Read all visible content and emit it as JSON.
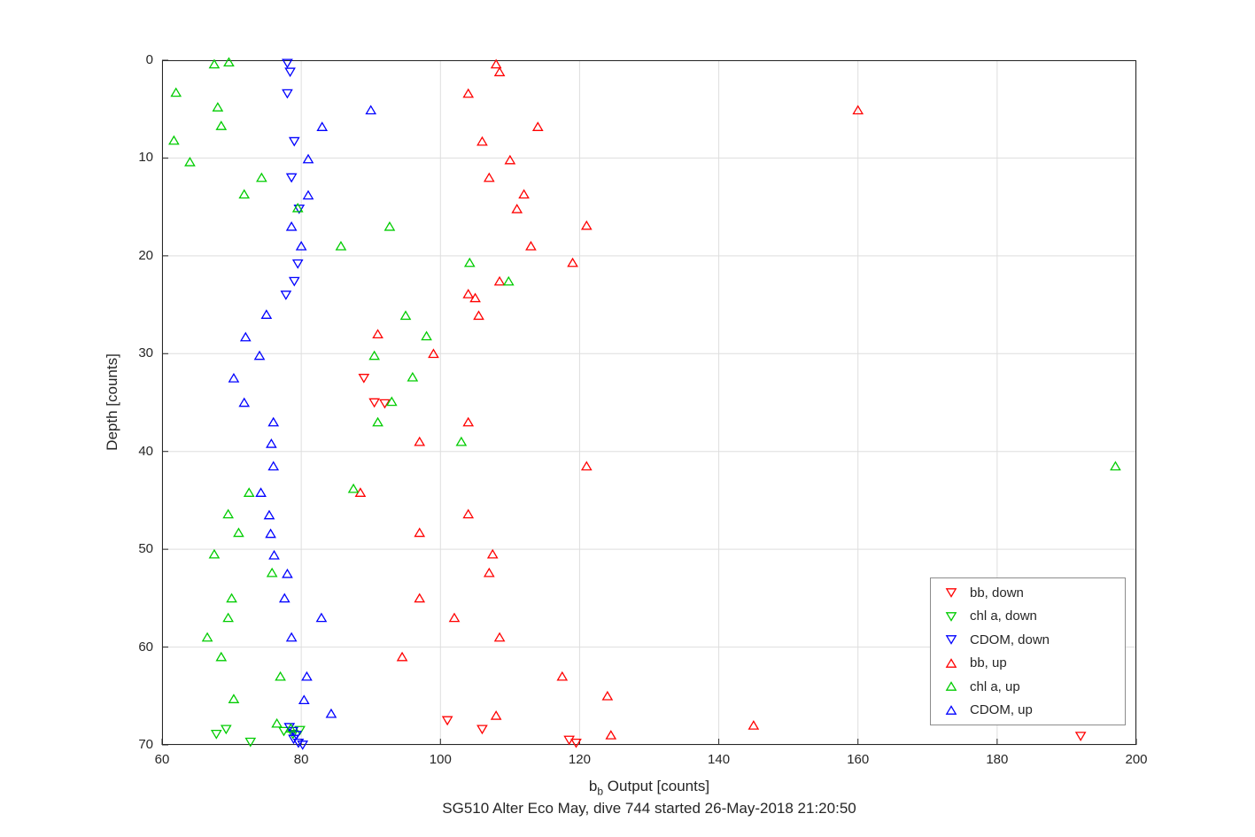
{
  "figure": {
    "title": "SG510 Alter Eco May, dive 744 started 26-May-2018 21:20:50",
    "xlabel_main": "b",
    "xlabel_sub": "b",
    "xlabel_rest": " Output [counts]",
    "ylabel": "Depth [counts]"
  },
  "chart_data": {
    "type": "scatter",
    "title": "SG510 Alter Eco May, dive 744 started 26-May-2018 21:20:50",
    "xlabel": "b_b Output [counts]",
    "ylabel": "Depth [counts]",
    "xlim": [
      60,
      200
    ],
    "ylim": [
      0,
      70
    ],
    "y_axis_reversed": true,
    "x_ticks": [
      60,
      80,
      100,
      120,
      140,
      160,
      180,
      200
    ],
    "y_ticks": [
      0,
      10,
      20,
      30,
      40,
      50,
      60,
      70
    ],
    "grid": true,
    "legend_position": "inside lower right",
    "marker_style": "hollow-triangle",
    "axis_color": "#262626",
    "grid_color": "#dedede",
    "series": [
      {
        "name": "bb, down",
        "color": "#ff0000",
        "marker": "triangle-down",
        "points": [
          [
            89,
            32.5
          ],
          [
            90.5,
            35.0
          ],
          [
            92,
            35.1
          ],
          [
            101,
            67.5
          ],
          [
            106,
            68.4
          ],
          [
            118.5,
            69.5
          ],
          [
            119.5,
            69.8
          ],
          [
            192,
            69.1
          ]
        ]
      },
      {
        "name": "chl a, down",
        "color": "#00cc00",
        "marker": "triangle-down",
        "points": [
          [
            67.8,
            68.9
          ],
          [
            69.2,
            68.4
          ],
          [
            72.7,
            69.7
          ],
          [
            77.5,
            68.6
          ],
          [
            78.8,
            68.9
          ],
          [
            79.8,
            68.5
          ]
        ]
      },
      {
        "name": "CDOM, down",
        "color": "#0000ff",
        "marker": "triangle-down",
        "points": [
          [
            78,
            0.3
          ],
          [
            78.4,
            1.2
          ],
          [
            78,
            3.4
          ],
          [
            79,
            8.3
          ],
          [
            78.6,
            12.0
          ],
          [
            79.7,
            15.2
          ],
          [
            79.5,
            20.8
          ],
          [
            79,
            22.6
          ],
          [
            77.8,
            24.0
          ],
          [
            78.3,
            68.2
          ],
          [
            78.8,
            68.6
          ],
          [
            79.3,
            69.0
          ],
          [
            78.9,
            69.4
          ],
          [
            79.6,
            69.8
          ],
          [
            80.2,
            70.0
          ]
        ]
      },
      {
        "name": "bb, up",
        "color": "#ff0000",
        "marker": "triangle-up",
        "points": [
          [
            108,
            0.4
          ],
          [
            108.5,
            1.2
          ],
          [
            104,
            3.4
          ],
          [
            160,
            5.1
          ],
          [
            114,
            6.8
          ],
          [
            106,
            8.3
          ],
          [
            110,
            10.2
          ],
          [
            107,
            12.0
          ],
          [
            112,
            13.7
          ],
          [
            111,
            15.2
          ],
          [
            121,
            16.9
          ],
          [
            113,
            19.0
          ],
          [
            119,
            20.7
          ],
          [
            108.5,
            22.6
          ],
          [
            104,
            23.9
          ],
          [
            105,
            24.3
          ],
          [
            105.5,
            26.1
          ],
          [
            91,
            28.0
          ],
          [
            99,
            30.0
          ],
          [
            104,
            37.0
          ],
          [
            97,
            39.0
          ],
          [
            121,
            41.5
          ],
          [
            88.5,
            44.2
          ],
          [
            104,
            46.4
          ],
          [
            97,
            48.3
          ],
          [
            107.5,
            50.5
          ],
          [
            107,
            52.4
          ],
          [
            97,
            55.0
          ],
          [
            102,
            57.0
          ],
          [
            108.5,
            59.0
          ],
          [
            94.5,
            61.0
          ],
          [
            117.5,
            63.0
          ],
          [
            124,
            65.0
          ],
          [
            108,
            67.0
          ],
          [
            145,
            68.0
          ],
          [
            124.5,
            69.0
          ]
        ]
      },
      {
        "name": "chl a, up",
        "color": "#00cc00",
        "marker": "triangle-up",
        "points": [
          [
            67.5,
            0.4
          ],
          [
            69.6,
            0.2
          ],
          [
            62,
            3.3
          ],
          [
            68,
            4.8
          ],
          [
            68.5,
            6.7
          ],
          [
            61.7,
            8.2
          ],
          [
            64,
            10.4
          ],
          [
            74.3,
            12.0
          ],
          [
            71.8,
            13.7
          ],
          [
            79.5,
            15.1
          ],
          [
            92.7,
            17.0
          ],
          [
            85.7,
            19.0
          ],
          [
            104.2,
            20.7
          ],
          [
            109.8,
            22.6
          ],
          [
            95,
            26.1
          ],
          [
            98,
            28.2
          ],
          [
            90.5,
            30.2
          ],
          [
            96,
            32.4
          ],
          [
            93,
            34.9
          ],
          [
            91,
            37.0
          ],
          [
            103,
            39.0
          ],
          [
            197,
            41.5
          ],
          [
            87.5,
            43.8
          ],
          [
            72.5,
            44.2
          ],
          [
            69.5,
            46.4
          ],
          [
            71,
            48.3
          ],
          [
            67.5,
            50.5
          ],
          [
            75.8,
            52.4
          ],
          [
            70,
            55.0
          ],
          [
            69.5,
            57.0
          ],
          [
            66.5,
            59.0
          ],
          [
            68.5,
            61.0
          ],
          [
            77,
            63.0
          ],
          [
            70.3,
            65.3
          ],
          [
            76.5,
            67.8
          ],
          [
            78.5,
            68.3
          ]
        ]
      },
      {
        "name": "CDOM, up",
        "color": "#0000ff",
        "marker": "triangle-up",
        "points": [
          [
            90,
            5.1
          ],
          [
            83,
            6.8
          ],
          [
            81,
            10.1
          ],
          [
            81,
            13.8
          ],
          [
            78.6,
            17.0
          ],
          [
            80,
            19.0
          ],
          [
            75,
            26.0
          ],
          [
            72,
            28.3
          ],
          [
            74,
            30.2
          ],
          [
            70.3,
            32.5
          ],
          [
            71.8,
            35.0
          ],
          [
            76,
            37.0
          ],
          [
            75.7,
            39.2
          ],
          [
            76,
            41.5
          ],
          [
            74.2,
            44.2
          ],
          [
            75.4,
            46.5
          ],
          [
            75.6,
            48.4
          ],
          [
            76.1,
            50.6
          ],
          [
            78,
            52.5
          ],
          [
            77.6,
            55.0
          ],
          [
            82.9,
            57.0
          ],
          [
            78.6,
            59.0
          ],
          [
            80.8,
            63.0
          ],
          [
            80.4,
            65.4
          ],
          [
            84.3,
            66.8
          ]
        ]
      }
    ]
  }
}
